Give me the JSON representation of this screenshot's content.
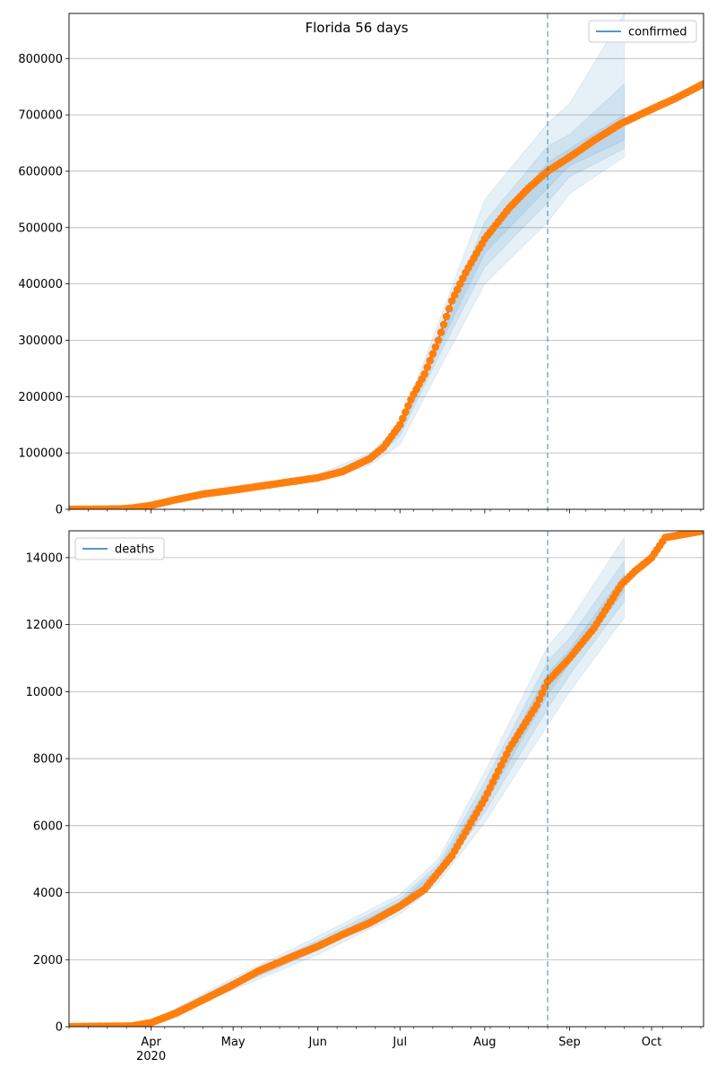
{
  "chart_data": [
    {
      "type": "line",
      "title": "Florida 56 days",
      "legend": {
        "label": "confirmed",
        "placement": "top-right"
      },
      "x_range": [
        "2020-03-02",
        "2020-10-20"
      ],
      "ylim": [
        0,
        880000
      ],
      "yticks": [
        0,
        100000,
        200000,
        300000,
        400000,
        500000,
        600000,
        700000,
        800000
      ],
      "ytick_labels": [
        "0",
        "100000",
        "200000",
        "300000",
        "400000",
        "500000",
        "600000",
        "700000",
        "800000"
      ],
      "grid": "y",
      "vline_date": "2020-08-24",
      "forecast_end": "2020-09-21",
      "observed_anchors": [
        [
          "2020-03-02",
          0
        ],
        [
          "2020-03-20",
          500
        ],
        [
          "2020-03-25",
          2000
        ],
        [
          "2020-04-01",
          7000
        ],
        [
          "2020-04-10",
          17000
        ],
        [
          "2020-04-20",
          27000
        ],
        [
          "2020-05-01",
          34000
        ],
        [
          "2020-05-15",
          44000
        ],
        [
          "2020-06-01",
          56000
        ],
        [
          "2020-06-10",
          67000
        ],
        [
          "2020-06-20",
          90000
        ],
        [
          "2020-06-25",
          110000
        ],
        [
          "2020-07-01",
          150000
        ],
        [
          "2020-07-05",
          195000
        ],
        [
          "2020-07-10",
          240000
        ],
        [
          "2020-07-15",
          300000
        ],
        [
          "2020-07-20",
          370000
        ],
        [
          "2020-07-25",
          420000
        ],
        [
          "2020-08-01",
          480000
        ],
        [
          "2020-08-10",
          535000
        ],
        [
          "2020-08-17",
          570000
        ],
        [
          "2020-08-24",
          600000
        ],
        [
          "2020-09-01",
          625000
        ],
        [
          "2020-09-10",
          655000
        ],
        [
          "2020-09-20",
          685000
        ],
        [
          "2020-10-01",
          710000
        ],
        [
          "2020-10-10",
          730000
        ],
        [
          "2020-10-20",
          755000
        ]
      ],
      "model_bands": [
        {
          "lower": [
            [
              "2020-03-02",
              0
            ],
            [
              "2020-04-01",
              6000
            ],
            [
              "2020-05-01",
              32000
            ],
            [
              "2020-06-01",
              50000
            ],
            [
              "2020-06-20",
              78000
            ],
            [
              "2020-07-01",
              115000
            ],
            [
              "2020-07-15",
              245000
            ],
            [
              "2020-08-01",
              400000
            ],
            [
              "2020-08-24",
              510000
            ],
            [
              "2020-09-01",
              560000
            ],
            [
              "2020-09-21",
              625000
            ]
          ],
          "upper": [
            [
              "2020-03-02",
              0
            ],
            [
              "2020-04-01",
              9000
            ],
            [
              "2020-05-01",
              37000
            ],
            [
              "2020-06-01",
              62000
            ],
            [
              "2020-06-20",
              100000
            ],
            [
              "2020-07-01",
              150000
            ],
            [
              "2020-07-15",
              330000
            ],
            [
              "2020-08-01",
              550000
            ],
            [
              "2020-08-24",
              685000
            ],
            [
              "2020-09-01",
              720000
            ],
            [
              "2020-09-21",
              880000
            ]
          ]
        },
        {
          "lower": [
            [
              "2020-03-02",
              0
            ],
            [
              "2020-04-01",
              6500
            ],
            [
              "2020-05-01",
              33000
            ],
            [
              "2020-06-01",
              53000
            ],
            [
              "2020-06-20",
              83000
            ],
            [
              "2020-07-01",
              130000
            ],
            [
              "2020-07-15",
              270000
            ],
            [
              "2020-08-01",
              430000
            ],
            [
              "2020-08-24",
              545000
            ],
            [
              "2020-09-01",
              590000
            ],
            [
              "2020-09-21",
              640000
            ]
          ],
          "upper": [
            [
              "2020-03-02",
              0
            ],
            [
              "2020-04-01",
              8000
            ],
            [
              "2020-05-01",
              36000
            ],
            [
              "2020-06-01",
              59000
            ],
            [
              "2020-06-20",
              93000
            ],
            [
              "2020-07-01",
              140000
            ],
            [
              "2020-07-15",
              305000
            ],
            [
              "2020-08-01",
              510000
            ],
            [
              "2020-08-24",
              645000
            ],
            [
              "2020-09-01",
              665000
            ],
            [
              "2020-09-21",
              755000
            ]
          ]
        },
        {
          "lower": [
            [
              "2020-03-02",
              0
            ],
            [
              "2020-04-01",
              7000
            ],
            [
              "2020-05-01",
              34000
            ],
            [
              "2020-06-01",
              55000
            ],
            [
              "2020-06-20",
              87000
            ],
            [
              "2020-07-01",
              138000
            ],
            [
              "2020-07-15",
              285000
            ],
            [
              "2020-08-01",
              455000
            ],
            [
              "2020-08-24",
              570000
            ],
            [
              "2020-09-01",
              610000
            ],
            [
              "2020-09-21",
              655000
            ]
          ],
          "upper": [
            [
              "2020-03-02",
              0
            ],
            [
              "2020-04-01",
              7500
            ],
            [
              "2020-05-01",
              35000
            ],
            [
              "2020-06-01",
              57000
            ],
            [
              "2020-06-20",
              90000
            ],
            [
              "2020-07-01",
              142000
            ],
            [
              "2020-07-15",
              295000
            ],
            [
              "2020-08-01",
              485000
            ],
            [
              "2020-08-24",
              615000
            ],
            [
              "2020-09-01",
              640000
            ],
            [
              "2020-09-21",
              700000
            ]
          ]
        }
      ]
    },
    {
      "type": "line",
      "legend": {
        "label": "deaths",
        "placement": "top-left"
      },
      "x_range": [
        "2020-03-02",
        "2020-10-20"
      ],
      "ylim": [
        0,
        14800
      ],
      "yticks": [
        0,
        2000,
        4000,
        6000,
        8000,
        10000,
        12000,
        14000
      ],
      "ytick_labels": [
        "0",
        "2000",
        "4000",
        "6000",
        "8000",
        "10000",
        "12000",
        "14000"
      ],
      "grid": "y",
      "vline_date": "2020-08-24",
      "forecast_end": "2020-09-21",
      "observed_anchors": [
        [
          "2020-03-02",
          0
        ],
        [
          "2020-03-25",
          20
        ],
        [
          "2020-04-01",
          120
        ],
        [
          "2020-04-10",
          400
        ],
        [
          "2020-04-20",
          800
        ],
        [
          "2020-05-01",
          1250
        ],
        [
          "2020-05-10",
          1650
        ],
        [
          "2020-05-20",
          2000
        ],
        [
          "2020-06-01",
          2400
        ],
        [
          "2020-06-10",
          2750
        ],
        [
          "2020-06-20",
          3100
        ],
        [
          "2020-07-01",
          3600
        ],
        [
          "2020-07-10",
          4100
        ],
        [
          "2020-07-20",
          5100
        ],
        [
          "2020-08-01",
          6800
        ],
        [
          "2020-08-10",
          8300
        ],
        [
          "2020-08-20",
          9600
        ],
        [
          "2020-08-24",
          10300
        ],
        [
          "2020-09-01",
          11000
        ],
        [
          "2020-09-10",
          11900
        ],
        [
          "2020-09-20",
          13200
        ],
        [
          "2020-09-25",
          13600
        ],
        [
          "2020-10-01",
          14000
        ],
        [
          "2020-10-06",
          14600
        ],
        [
          "2020-10-20",
          14800
        ]
      ],
      "model_bands": [
        {
          "lower": [
            [
              "2020-03-02",
              0
            ],
            [
              "2020-04-01",
              100
            ],
            [
              "2020-05-01",
              1100
            ],
            [
              "2020-06-01",
              2150
            ],
            [
              "2020-07-01",
              3350
            ],
            [
              "2020-07-15",
              4300
            ],
            [
              "2020-08-01",
              6100
            ],
            [
              "2020-08-24",
              9000
            ],
            [
              "2020-09-01",
              10000
            ],
            [
              "2020-09-21",
              12200
            ]
          ],
          "upper": [
            [
              "2020-03-02",
              0
            ],
            [
              "2020-04-01",
              160
            ],
            [
              "2020-05-01",
              1450
            ],
            [
              "2020-06-01",
              2700
            ],
            [
              "2020-07-01",
              3950
            ],
            [
              "2020-07-15",
              5000
            ],
            [
              "2020-08-01",
              7600
            ],
            [
              "2020-08-24",
              11350
            ],
            [
              "2020-09-01",
              12100
            ],
            [
              "2020-09-21",
              14600
            ]
          ]
        },
        {
          "lower": [
            [
              "2020-03-02",
              0
            ],
            [
              "2020-04-01",
              110
            ],
            [
              "2020-05-01",
              1170
            ],
            [
              "2020-06-01",
              2280
            ],
            [
              "2020-07-01",
              3480
            ],
            [
              "2020-07-15",
              4450
            ],
            [
              "2020-08-01",
              6400
            ],
            [
              "2020-08-24",
              9500
            ],
            [
              "2020-09-01",
              10500
            ],
            [
              "2020-09-21",
              12700
            ]
          ],
          "upper": [
            [
              "2020-03-02",
              0
            ],
            [
              "2020-04-01",
              145
            ],
            [
              "2020-05-01",
              1380
            ],
            [
              "2020-06-01",
              2580
            ],
            [
              "2020-07-01",
              3820
            ],
            [
              "2020-07-15",
              4850
            ],
            [
              "2020-08-01",
              7300
            ],
            [
              "2020-08-24",
              10900
            ],
            [
              "2020-09-01",
              11600
            ],
            [
              "2020-09-21",
              13900
            ]
          ]
        },
        {
          "lower": [
            [
              "2020-03-02",
              0
            ],
            [
              "2020-04-01",
              118
            ],
            [
              "2020-05-01",
              1230
            ],
            [
              "2020-06-01",
              2380
            ],
            [
              "2020-07-01",
              3580
            ],
            [
              "2020-07-15",
              4570
            ],
            [
              "2020-08-01",
              6650
            ],
            [
              "2020-08-24",
              9900
            ],
            [
              "2020-09-01",
              10850
            ],
            [
              "2020-09-21",
              13000
            ]
          ],
          "upper": [
            [
              "2020-03-02",
              0
            ],
            [
              "2020-04-01",
              135
            ],
            [
              "2020-05-01",
              1320
            ],
            [
              "2020-06-01",
              2480
            ],
            [
              "2020-07-01",
              3720
            ],
            [
              "2020-07-15",
              4730
            ],
            [
              "2020-08-01",
              7050
            ],
            [
              "2020-08-24",
              10550
            ],
            [
              "2020-09-01",
              11250
            ],
            [
              "2020-09-21",
              13500
            ]
          ]
        }
      ]
    }
  ],
  "x_axis": {
    "ticks": [
      {
        "date": "2020-04-01",
        "label": "Apr",
        "year": "2020"
      },
      {
        "date": "2020-05-01",
        "label": "May"
      },
      {
        "date": "2020-06-01",
        "label": "Jun"
      },
      {
        "date": "2020-07-01",
        "label": "Jul"
      },
      {
        "date": "2020-08-01",
        "label": "Aug"
      },
      {
        "date": "2020-09-01",
        "label": "Sep"
      },
      {
        "date": "2020-10-01",
        "label": "Oct"
      }
    ]
  },
  "colors": {
    "model_line": "#1f77b4",
    "observed": "#ff7f0e",
    "band": "#1f77b4",
    "vline": "#1f77b4",
    "grid": "#b0b0b0"
  }
}
